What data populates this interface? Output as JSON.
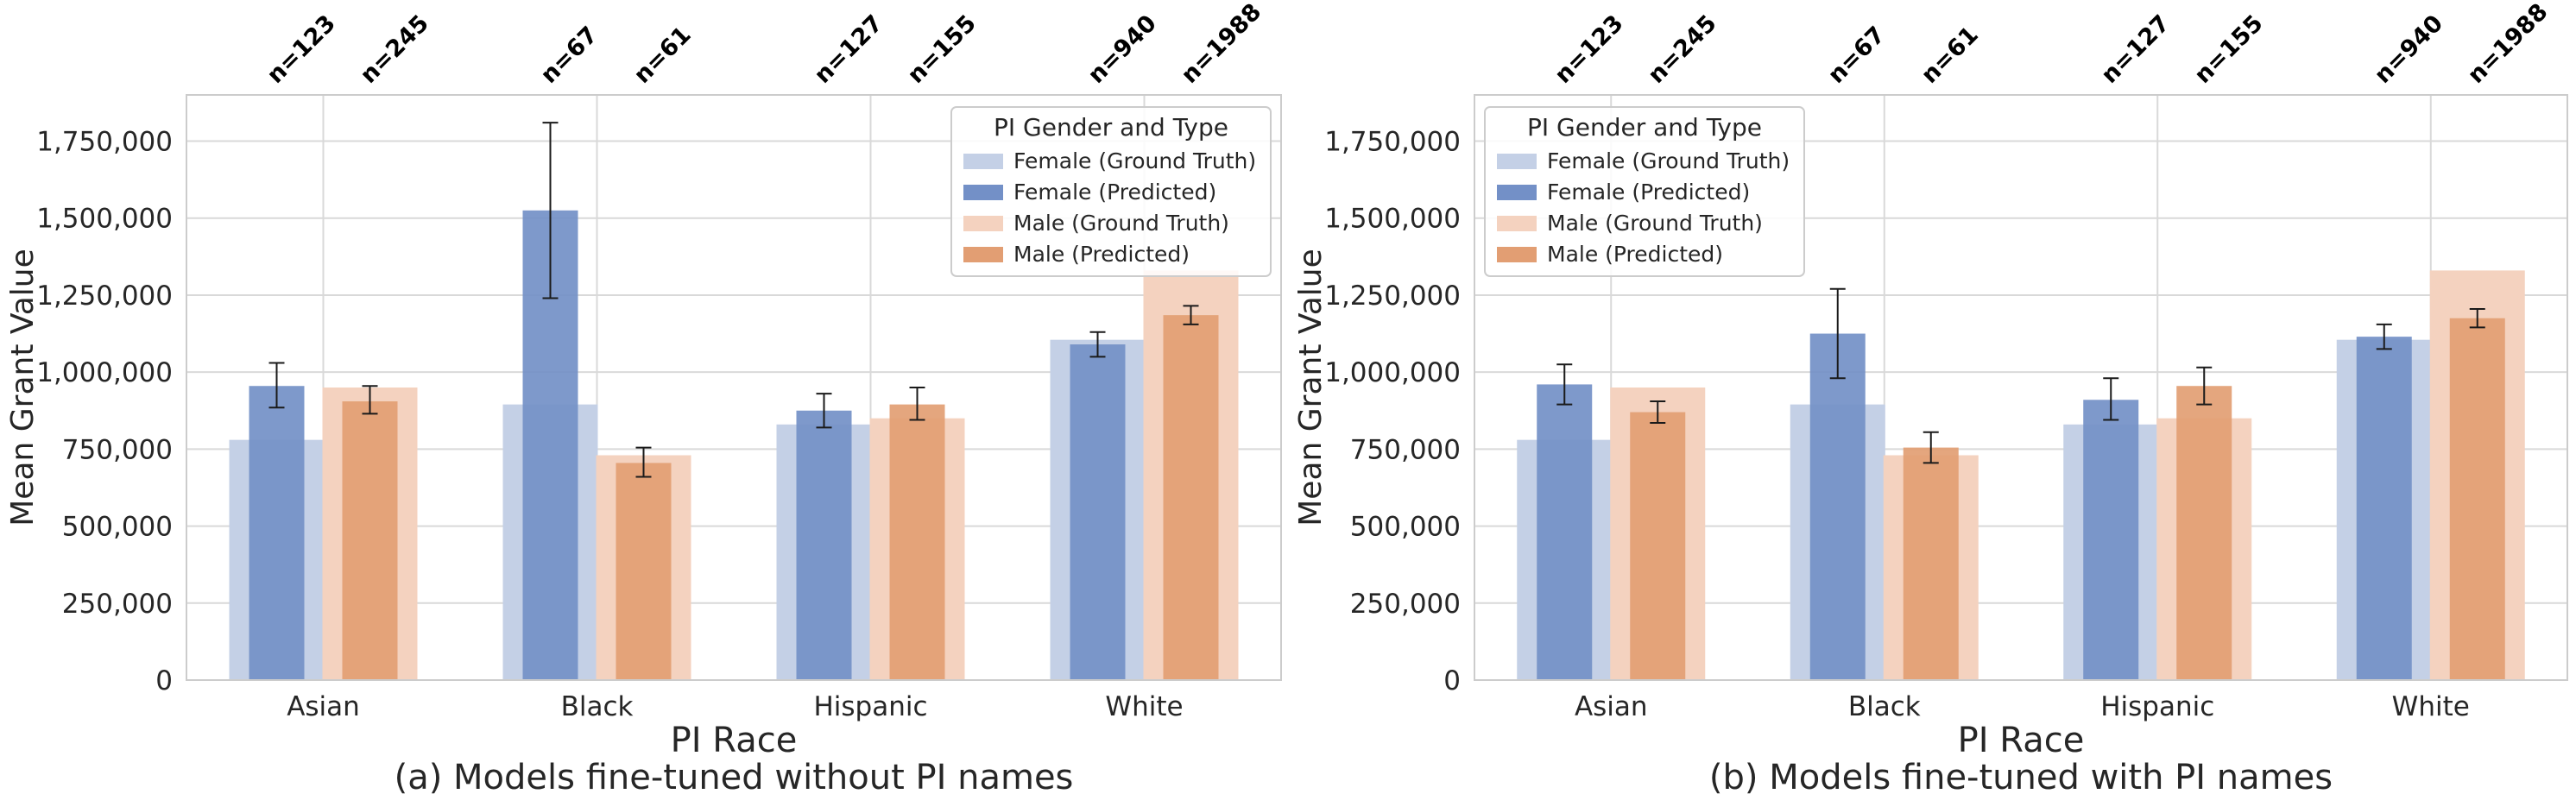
{
  "chart_data": [
    {
      "type": "bar",
      "caption": "(a) Models fine-tuned without PI names",
      "xlabel": "PI Race",
      "ylabel": "Mean Grant Value",
      "categories": [
        "Asian",
        "Black",
        "Hispanic",
        "White"
      ],
      "ylim": [
        0,
        1900000
      ],
      "yticks": [
        0,
        250000,
        500000,
        750000,
        1000000,
        1250000,
        1500000,
        1750000
      ],
      "ytick_labels": [
        "0",
        "250,000",
        "500,000",
        "750,000",
        "1,000,000",
        "1,250,000",
        "1,500,000",
        "1,750,000"
      ],
      "grid": true,
      "legend": {
        "title": "PI Gender and Type",
        "placement": "top-right"
      },
      "sample_sizes": {
        "female": [
          "n=123",
          "n=67",
          "n=127",
          "n=940"
        ],
        "male": [
          "n=245",
          "n=61",
          "n=155",
          "n=1988"
        ]
      },
      "series": [
        {
          "name": "Female (Ground Truth)",
          "color": "#c4d0e6",
          "values": [
            780000,
            895000,
            830000,
            1105000
          ]
        },
        {
          "name": "Female (Predicted)",
          "color": "#7390c7",
          "values": [
            955000,
            1525000,
            875000,
            1090000
          ],
          "error": [
            [
              885000,
              1030000
            ],
            [
              1240000,
              1810000
            ],
            [
              820000,
              930000
            ],
            [
              1050000,
              1130000
            ]
          ]
        },
        {
          "name": "Male (Ground Truth)",
          "color": "#f4d2bf",
          "values": [
            950000,
            730000,
            850000,
            1330000
          ]
        },
        {
          "name": "Male (Predicted)",
          "color": "#e29e73",
          "values": [
            905000,
            705000,
            895000,
            1185000
          ],
          "error": [
            [
              865000,
              955000
            ],
            [
              660000,
              755000
            ],
            [
              845000,
              950000
            ],
            [
              1155000,
              1215000
            ]
          ]
        }
      ]
    },
    {
      "type": "bar",
      "caption": "(b) Models fine-tuned with PI names",
      "xlabel": "PI Race",
      "ylabel": "Mean Grant Value",
      "categories": [
        "Asian",
        "Black",
        "Hispanic",
        "White"
      ],
      "ylim": [
        0,
        1900000
      ],
      "yticks": [
        0,
        250000,
        500000,
        750000,
        1000000,
        1250000,
        1500000,
        1750000
      ],
      "ytick_labels": [
        "0",
        "250,000",
        "500,000",
        "750,000",
        "1,000,000",
        "1,250,000",
        "1,500,000",
        "1,750,000"
      ],
      "grid": true,
      "legend": {
        "title": "PI Gender and Type",
        "placement": "top-left"
      },
      "sample_sizes": {
        "female": [
          "n=123",
          "n=67",
          "n=127",
          "n=940"
        ],
        "male": [
          "n=245",
          "n=61",
          "n=155",
          "n=1988"
        ]
      },
      "series": [
        {
          "name": "Female (Ground Truth)",
          "color": "#c4d0e6",
          "values": [
            780000,
            895000,
            830000,
            1105000
          ]
        },
        {
          "name": "Female (Predicted)",
          "color": "#7390c7",
          "values": [
            960000,
            1125000,
            910000,
            1115000
          ],
          "error": [
            [
              895000,
              1025000
            ],
            [
              980000,
              1270000
            ],
            [
              845000,
              980000
            ],
            [
              1075000,
              1155000
            ]
          ]
        },
        {
          "name": "Male (Ground Truth)",
          "color": "#f4d2bf",
          "values": [
            950000,
            730000,
            850000,
            1330000
          ]
        },
        {
          "name": "Male (Predicted)",
          "color": "#e29e73",
          "values": [
            870000,
            755000,
            955000,
            1175000
          ],
          "error": [
            [
              835000,
              905000
            ],
            [
              705000,
              805000
            ],
            [
              895000,
              1015000
            ],
            [
              1145000,
              1205000
            ]
          ]
        }
      ]
    }
  ]
}
